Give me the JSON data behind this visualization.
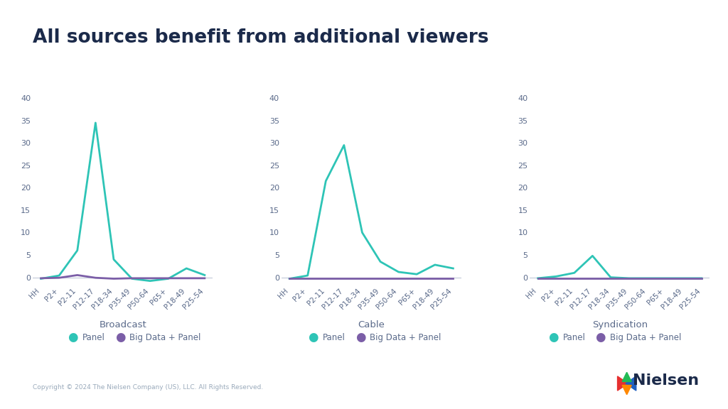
{
  "title": "All sources benefit from additional viewers",
  "title_color": "#1b2a4a",
  "title_fontsize": 19,
  "title_fontweight": "bold",
  "background_color": "#ffffff",
  "categories": [
    "HH",
    "P2+",
    "P2-11",
    "P12-17",
    "P18-34",
    "P35-49",
    "P50-64",
    "P65+",
    "P18-49",
    "P25-54"
  ],
  "subplot_titles": [
    "Broadcast",
    "Cable",
    "Syndication"
  ],
  "panel_color": "#2ec4b6",
  "bigdata_color": "#7b5ea7",
  "ylim": [
    -2,
    40
  ],
  "yticks": [
    0,
    5,
    10,
    15,
    20,
    25,
    30,
    35,
    40
  ],
  "broadcast_panel": [
    -0.3,
    0.4,
    6.0,
    34.5,
    4.0,
    -0.3,
    -0.8,
    -0.3,
    2.0,
    0.5
  ],
  "broadcast_bigdata": [
    -0.2,
    -0.1,
    0.5,
    -0.1,
    -0.3,
    -0.2,
    -0.2,
    -0.2,
    -0.2,
    -0.2
  ],
  "cable_panel": [
    -0.3,
    0.4,
    21.5,
    29.5,
    10.0,
    3.5,
    1.2,
    0.7,
    2.8,
    2.0
  ],
  "cable_bigdata": [
    -0.2,
    -0.2,
    -0.2,
    -0.2,
    -0.2,
    -0.2,
    -0.2,
    -0.2,
    -0.2,
    -0.2
  ],
  "syndication_panel": [
    -0.2,
    0.2,
    1.0,
    4.8,
    0.0,
    -0.2,
    -0.2,
    -0.2,
    -0.2,
    -0.2
  ],
  "syndication_bigdata": [
    -0.15,
    -0.15,
    -0.15,
    -0.15,
    -0.15,
    -0.15,
    -0.15,
    -0.15,
    -0.15,
    -0.15
  ],
  "legend_label_panel": "Panel",
  "legend_label_bigdata": "Big Data + Panel",
  "copyright_text": "Copyright © 2024 The Nielsen Company (US), LLC. All Rights Reserved.",
  "axis_color": "#c0c8d8",
  "tick_color": "#5a6a8a",
  "subplot_title_color": "#5a6a8a",
  "line_width": 2.0
}
